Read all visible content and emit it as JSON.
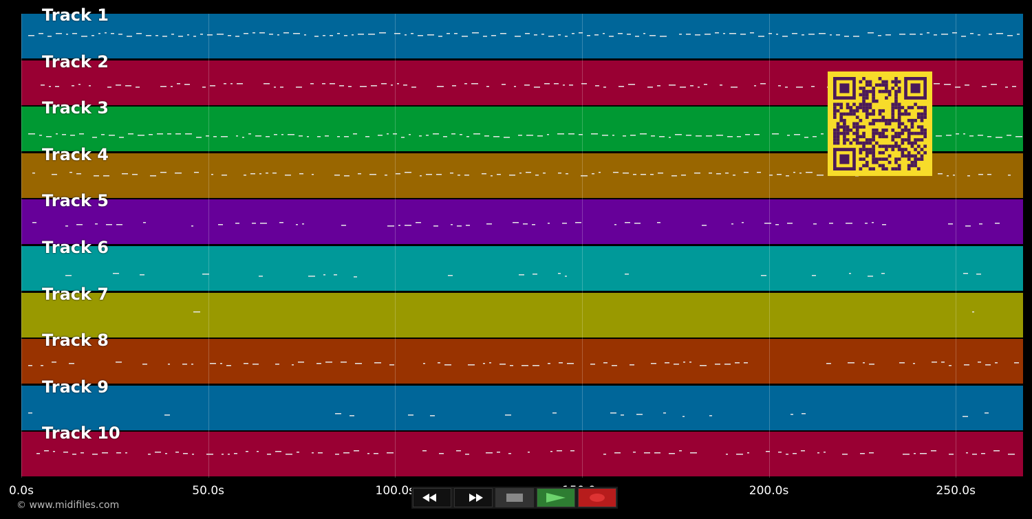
{
  "tracks": [
    {
      "label": "Track 1",
      "color": "#006699"
    },
    {
      "label": "Track 2",
      "color": "#990033"
    },
    {
      "label": "Track 3",
      "color": "#009933"
    },
    {
      "label": "Track 4",
      "color": "#996600"
    },
    {
      "label": "Track 5",
      "color": "#660099"
    },
    {
      "label": "Track 6",
      "color": "#009999"
    },
    {
      "label": "Track 7",
      "color": "#999900"
    },
    {
      "label": "Track 8",
      "color": "#993300"
    },
    {
      "label": "Track 9",
      "color": "#006699"
    },
    {
      "label": "Track 10",
      "color": "#990033"
    }
  ],
  "timeline": {
    "ticks": [
      "0.0s",
      "50.0s",
      "100.0s",
      "150.0s",
      "200.0s",
      "250.0s"
    ],
    "tick_values": [
      0,
      50,
      100,
      150,
      200,
      250
    ],
    "max_seconds": 268
  },
  "footer": {
    "copyright": "© www.midifiles.com"
  },
  "transport": {
    "buttons": [
      {
        "name": "rewind-icon"
      },
      {
        "name": "fast-forward-icon"
      },
      {
        "name": "stop-icon"
      },
      {
        "name": "play-icon"
      },
      {
        "name": "record-icon"
      }
    ],
    "colors": {
      "play": "#2e7d32",
      "record": "#b71c1c"
    }
  },
  "qr": {
    "background": "#f7dc2a",
    "foreground": "#4a1a5a"
  }
}
